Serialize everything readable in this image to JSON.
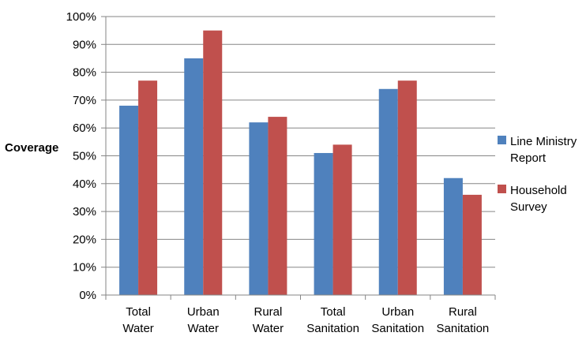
{
  "chart_data": {
    "type": "bar",
    "title": "",
    "xlabel": "",
    "ylabel": "Coverage",
    "ylim": [
      0,
      100
    ],
    "ytick_step": 10,
    "ytick_format": "percent",
    "grid": true,
    "legend_position": "right",
    "categories": [
      [
        "Total",
        "Water"
      ],
      [
        "Urban",
        "Water"
      ],
      [
        "Rural",
        "Water"
      ],
      [
        "Total",
        "Sanitation"
      ],
      [
        "Urban",
        "Sanitation"
      ],
      [
        "Rural",
        "Sanitation"
      ]
    ],
    "series": [
      {
        "name": [
          "Line Ministry",
          "Report"
        ],
        "color": "#4F81BD",
        "values": [
          68,
          85,
          62,
          51,
          74,
          42
        ]
      },
      {
        "name": [
          "Household",
          "Survey"
        ],
        "color": "#C0504D",
        "values": [
          77,
          95,
          64,
          54,
          77,
          36
        ]
      }
    ]
  }
}
